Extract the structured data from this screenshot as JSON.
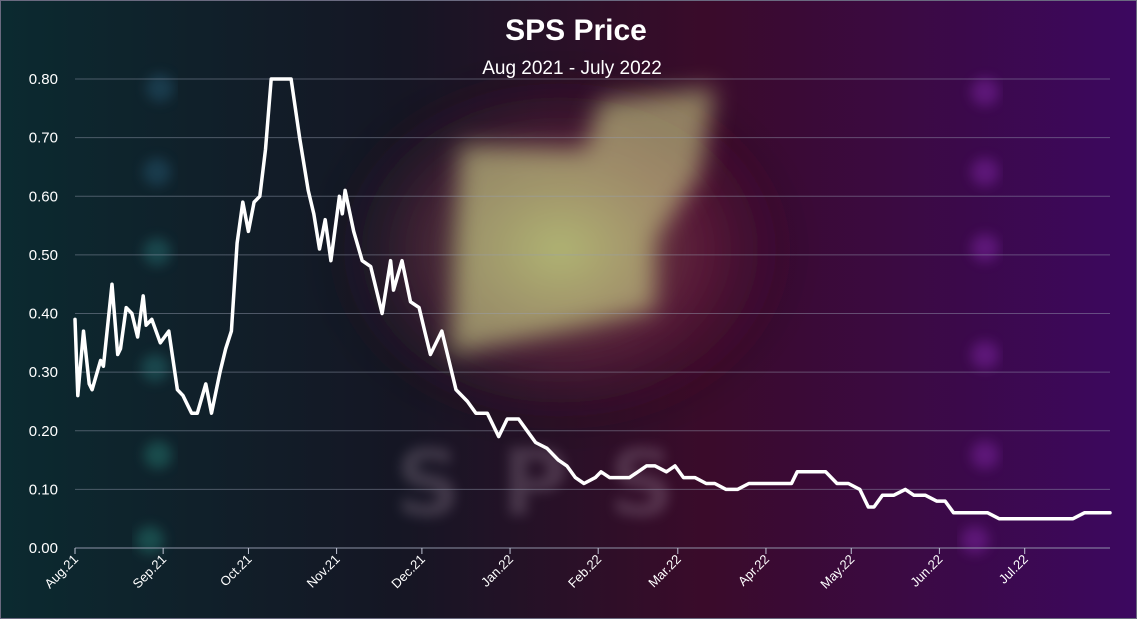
{
  "chart_data": {
    "type": "line",
    "title": "SPS Price",
    "subtitle": "Aug 2021 - July 2022",
    "xlabel": "",
    "ylabel": "",
    "ylim": [
      0,
      0.8
    ],
    "yticks": [
      "0.00",
      "0.10",
      "0.20",
      "0.30",
      "0.40",
      "0.50",
      "0.60",
      "0.70",
      "0.80"
    ],
    "xticks": [
      "Aug.21",
      "Sep.21",
      "Oct.21",
      "Nov.21",
      "Dec.21",
      "Jan.22",
      "Feb.22",
      "Mar.22",
      "Apr.22",
      "May.22",
      "Jun.22",
      "Jul.22"
    ],
    "xrange": [
      "2021-08-01",
      "2022-07-31"
    ],
    "grid": true,
    "legend": "none",
    "watermark": "SPS",
    "line_color": "#ffffff",
    "series": [
      {
        "points": [
          [
            "2021-08-01",
            0.39
          ],
          [
            "2021-08-02",
            0.26
          ],
          [
            "2021-08-04",
            0.37
          ],
          [
            "2021-08-06",
            0.28
          ],
          [
            "2021-08-07",
            0.27
          ],
          [
            "2021-08-10",
            0.32
          ],
          [
            "2021-08-11",
            0.31
          ],
          [
            "2021-08-14",
            0.45
          ],
          [
            "2021-08-16",
            0.33
          ],
          [
            "2021-08-17",
            0.34
          ],
          [
            "2021-08-19",
            0.41
          ],
          [
            "2021-08-21",
            0.4
          ],
          [
            "2021-08-23",
            0.36
          ],
          [
            "2021-08-25",
            0.43
          ],
          [
            "2021-08-26",
            0.38
          ],
          [
            "2021-08-28",
            0.39
          ],
          [
            "2021-08-31",
            0.35
          ],
          [
            "2021-09-03",
            0.37
          ],
          [
            "2021-09-06",
            0.27
          ],
          [
            "2021-09-08",
            0.26
          ],
          [
            "2021-09-10",
            0.24
          ],
          [
            "2021-09-11",
            0.23
          ],
          [
            "2021-09-13",
            0.23
          ],
          [
            "2021-09-16",
            0.28
          ],
          [
            "2021-09-18",
            0.23
          ],
          [
            "2021-09-21",
            0.3
          ],
          [
            "2021-09-23",
            0.34
          ],
          [
            "2021-09-25",
            0.37
          ],
          [
            "2021-09-27",
            0.52
          ],
          [
            "2021-09-29",
            0.59
          ],
          [
            "2021-10-01",
            0.54
          ],
          [
            "2021-10-03",
            0.59
          ],
          [
            "2021-10-05",
            0.6
          ],
          [
            "2021-10-07",
            0.68
          ],
          [
            "2021-10-09",
            0.8
          ],
          [
            "2021-10-16",
            0.8
          ],
          [
            "2021-10-19",
            0.7
          ],
          [
            "2021-10-22",
            0.61
          ],
          [
            "2021-10-24",
            0.57
          ],
          [
            "2021-10-26",
            0.51
          ],
          [
            "2021-10-28",
            0.56
          ],
          [
            "2021-10-30",
            0.49
          ],
          [
            "2021-11-02",
            0.6
          ],
          [
            "2021-11-03",
            0.57
          ],
          [
            "2021-11-04",
            0.61
          ],
          [
            "2021-11-07",
            0.54
          ],
          [
            "2021-11-10",
            0.49
          ],
          [
            "2021-11-13",
            0.48
          ],
          [
            "2021-11-17",
            0.4
          ],
          [
            "2021-11-20",
            0.49
          ],
          [
            "2021-11-21",
            0.44
          ],
          [
            "2021-11-24",
            0.49
          ],
          [
            "2021-11-27",
            0.42
          ],
          [
            "2021-11-30",
            0.41
          ],
          [
            "2021-12-02",
            0.37
          ],
          [
            "2021-12-04",
            0.33
          ],
          [
            "2021-12-08",
            0.37
          ],
          [
            "2021-12-10",
            0.33
          ],
          [
            "2021-12-13",
            0.27
          ],
          [
            "2021-12-17",
            0.25
          ],
          [
            "2021-12-20",
            0.23
          ],
          [
            "2021-12-24",
            0.23
          ],
          [
            "2021-12-28",
            0.19
          ],
          [
            "2021-12-31",
            0.22
          ],
          [
            "2022-01-04",
            0.22
          ],
          [
            "2022-01-07",
            0.2
          ],
          [
            "2022-01-10",
            0.18
          ],
          [
            "2022-01-14",
            0.17
          ],
          [
            "2022-01-18",
            0.15
          ],
          [
            "2022-01-21",
            0.14
          ],
          [
            "2022-01-24",
            0.12
          ],
          [
            "2022-01-27",
            0.11
          ],
          [
            "2022-01-31",
            0.12
          ],
          [
            "2022-02-02",
            0.13
          ],
          [
            "2022-02-05",
            0.12
          ],
          [
            "2022-02-08",
            0.12
          ],
          [
            "2022-02-12",
            0.12
          ],
          [
            "2022-02-15",
            0.13
          ],
          [
            "2022-02-18",
            0.14
          ],
          [
            "2022-02-21",
            0.14
          ],
          [
            "2022-02-25",
            0.13
          ],
          [
            "2022-02-28",
            0.14
          ],
          [
            "2022-03-03",
            0.12
          ],
          [
            "2022-03-07",
            0.12
          ],
          [
            "2022-03-11",
            0.11
          ],
          [
            "2022-03-14",
            0.11
          ],
          [
            "2022-03-18",
            0.1
          ],
          [
            "2022-03-22",
            0.1
          ],
          [
            "2022-03-26",
            0.11
          ],
          [
            "2022-03-30",
            0.11
          ],
          [
            "2022-04-03",
            0.11
          ],
          [
            "2022-04-07",
            0.11
          ],
          [
            "2022-04-10",
            0.11
          ],
          [
            "2022-04-12",
            0.13
          ],
          [
            "2022-04-15",
            0.13
          ],
          [
            "2022-04-18",
            0.13
          ],
          [
            "2022-04-22",
            0.13
          ],
          [
            "2022-04-26",
            0.11
          ],
          [
            "2022-04-30",
            0.11
          ],
          [
            "2022-05-04",
            0.1
          ],
          [
            "2022-05-07",
            0.07
          ],
          [
            "2022-05-09",
            0.07
          ],
          [
            "2022-05-12",
            0.09
          ],
          [
            "2022-05-16",
            0.09
          ],
          [
            "2022-05-20",
            0.1
          ],
          [
            "2022-05-23",
            0.09
          ],
          [
            "2022-05-27",
            0.09
          ],
          [
            "2022-05-31",
            0.08
          ],
          [
            "2022-06-03",
            0.08
          ],
          [
            "2022-06-06",
            0.06
          ],
          [
            "2022-06-10",
            0.06
          ],
          [
            "2022-06-14",
            0.06
          ],
          [
            "2022-06-18",
            0.06
          ],
          [
            "2022-06-22",
            0.05
          ],
          [
            "2022-06-26",
            0.05
          ],
          [
            "2022-07-01",
            0.05
          ],
          [
            "2022-07-05",
            0.05
          ],
          [
            "2022-07-10",
            0.05
          ],
          [
            "2022-07-14",
            0.05
          ],
          [
            "2022-07-18",
            0.05
          ],
          [
            "2022-07-22",
            0.06
          ],
          [
            "2022-07-26",
            0.06
          ],
          [
            "2022-07-31",
            0.06
          ]
        ]
      }
    ]
  }
}
